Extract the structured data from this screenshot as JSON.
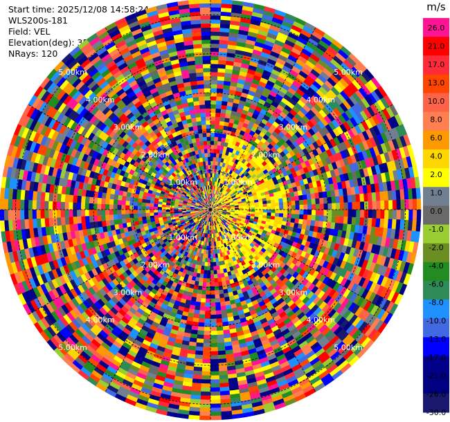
{
  "header": {
    "start_time": "Start time: 2025/12/08 14:58:24",
    "instrument": "WLS200s-181",
    "field": "Field: VEL",
    "elevation": "Elevation(deg): 35.00",
    "nrays": "NRays: 120"
  },
  "chart_data": {
    "type": "heatmap",
    "projection": "polar-ppi",
    "field": "VEL",
    "unit": "m/s",
    "n_rays": 120,
    "elevation_deg": 35.0,
    "range_ring_labels": [
      "1.00km",
      "2.00km",
      "3.00km",
      "4.00km",
      "5.00km"
    ],
    "range_rings_km": [
      1,
      2,
      3,
      4,
      5
    ],
    "max_range_km": 5.4,
    "colorbar": {
      "ticks": [
        "26.0",
        "21.0",
        "17.0",
        "13.0",
        "10.0",
        "8.0",
        "6.0",
        "4.0",
        "2.0",
        "1.0",
        "0.0",
        "-1.0",
        "-2.0",
        "-4.0",
        "-6.0",
        "-8.0",
        "-10.0",
        "-13.0",
        "-17.0",
        "-21.0",
        "-26.0",
        "-30.0"
      ],
      "colors": [
        "#ff1493",
        "#ff0000",
        "#ff2a3a",
        "#ff4500",
        "#ff6347",
        "#ff7f50",
        "#ff9900",
        "#ffd700",
        "#ffff00",
        "#708090",
        "#696969",
        "#9acd32",
        "#6b8e23",
        "#228b22",
        "#2e8b57",
        "#1e90ff",
        "#4169e1",
        "#0000ff",
        "#00008b",
        "#000080",
        "#191970"
      ]
    }
  }
}
